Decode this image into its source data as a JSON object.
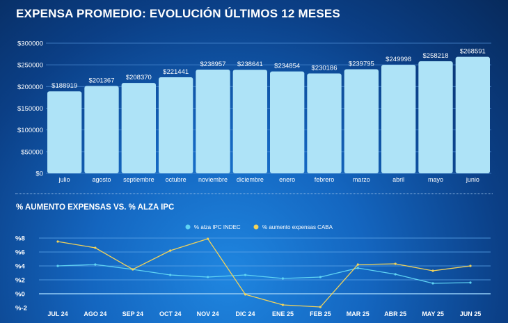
{
  "chart_data": [
    {
      "type": "bar",
      "title": "EXPENSA PROMEDIO: EVOLUCIÓN ÚLTIMOS 12 MESES",
      "categories": [
        "julio",
        "agosto",
        "septiembre",
        "octubre",
        "noviembre",
        "diciembre",
        "enero",
        "febrero",
        "marzo",
        "abril",
        "mayo",
        "junio"
      ],
      "values": [
        188919,
        201367,
        208370,
        221441,
        238957,
        238641,
        234854,
        230186,
        239795,
        249998,
        258218,
        268591
      ],
      "data_labels": [
        "$188919",
        "$201367",
        "$208370",
        "$221441",
        "$238957",
        "$238641",
        "$234854",
        "$230186",
        "$239795",
        "$249998",
        "$258218",
        "$268591"
      ],
      "ylim": [
        0,
        300000
      ],
      "yticks": [
        "$0",
        "$50000",
        "$100000",
        "$150000",
        "$200000",
        "$250000",
        "$300000"
      ],
      "grid": true,
      "bar_color": "#aee3f7"
    },
    {
      "type": "line",
      "title": "% AUMENTO EXPENSAS VS. % ALZA IPC",
      "categories": [
        "JUL 24",
        "AGO 24",
        "SEP 24",
        "OCT 24",
        "NOV 24",
        "DIC 24",
        "ENE 25",
        "FEB 25",
        "MAR 25",
        "ABR 25",
        "MAY 25",
        "JUN 25"
      ],
      "series": [
        {
          "name": "% alza IPC INDEC",
          "color": "#5fd3f3",
          "values": [
            4.0,
            4.2,
            3.5,
            2.7,
            2.4,
            2.7,
            2.2,
            2.4,
            3.7,
            2.8,
            1.5,
            1.6
          ]
        },
        {
          "name": "% aumento expensas CABA",
          "color": "#f2d35a",
          "values": [
            7.5,
            6.6,
            3.5,
            6.2,
            7.9,
            -0.1,
            -1.6,
            -1.9,
            4.2,
            4.3,
            3.3,
            4.0
          ]
        }
      ],
      "ylim": [
        -2,
        8
      ],
      "yticks": [
        "%-2",
        "%0",
        "%2",
        "%4",
        "%6",
        "%8"
      ],
      "grid": true,
      "legend": "top-center"
    }
  ]
}
